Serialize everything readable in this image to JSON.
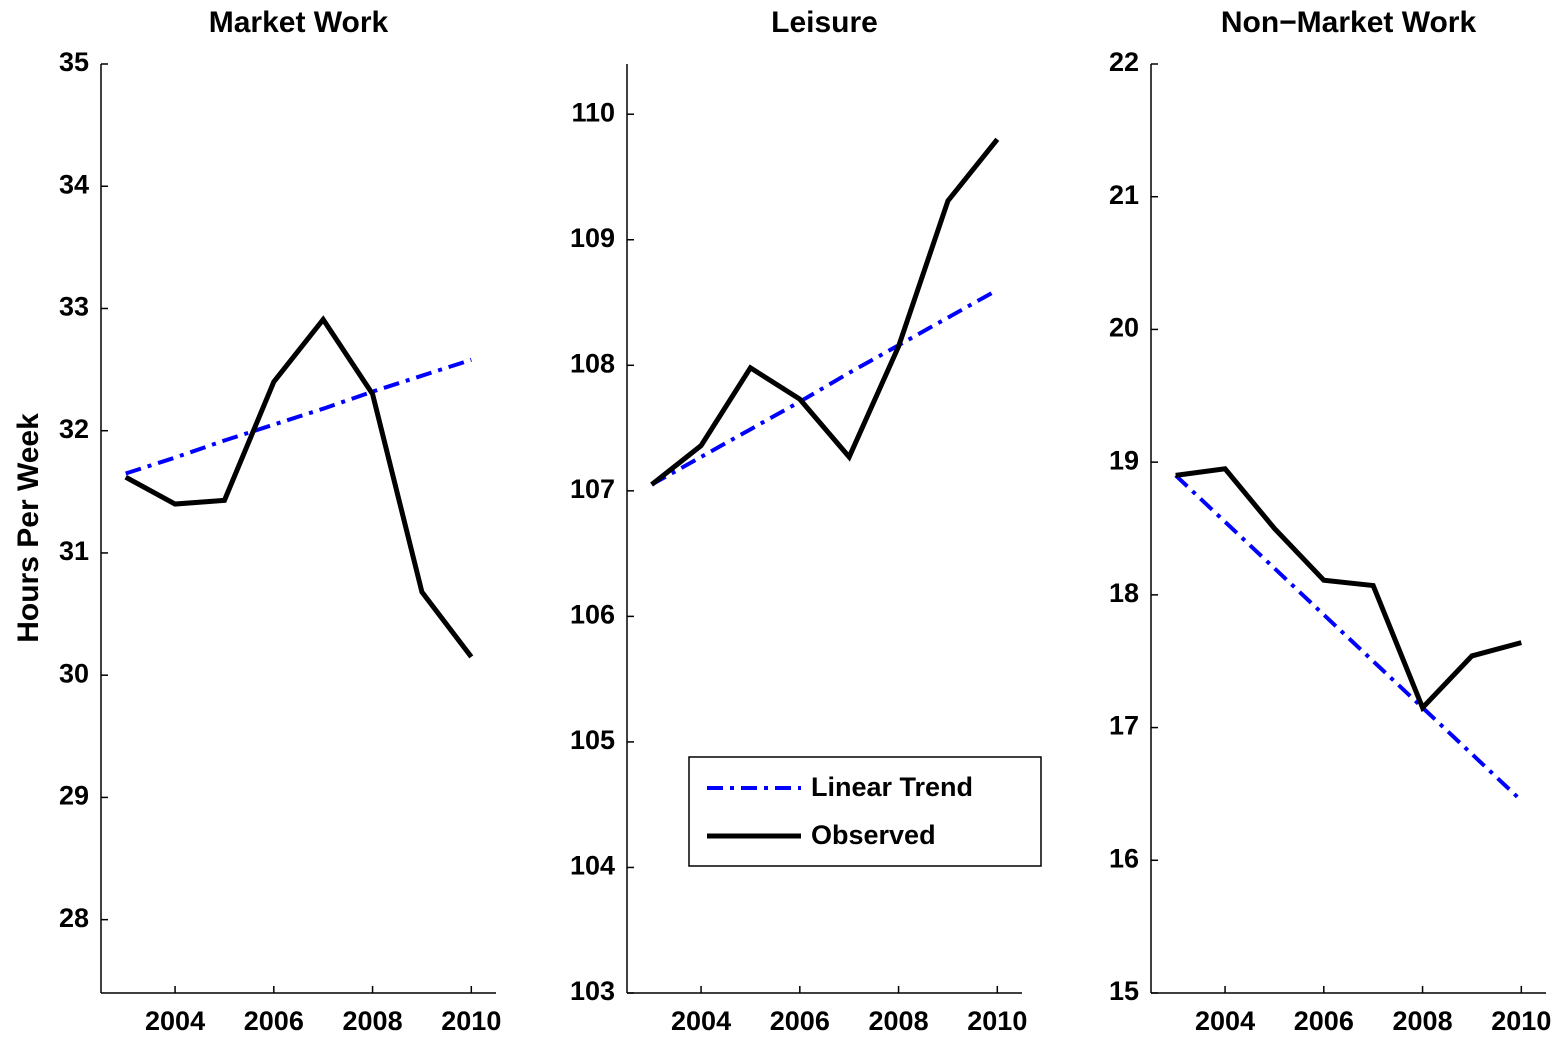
{
  "chart_data": [
    {
      "type": "line",
      "title": "Market Work",
      "ylabel": "Hours Per Week",
      "x": [
        2003,
        2004,
        2005,
        2006,
        2007,
        2008,
        2009,
        2010
      ],
      "series": [
        {
          "color": "#0000ff",
          "style": "dashdot",
          "values": [
            31.65,
            31.78,
            31.92,
            32.05,
            32.18,
            32.32,
            32.45,
            32.58
          ]
        },
        {
          "color": "#000000",
          "style": "solid",
          "values": [
            31.62,
            31.4,
            31.43,
            32.4,
            32.91,
            32.3,
            30.68,
            30.15
          ]
        }
      ],
      "xlim": [
        2002.5,
        2010.5
      ],
      "xticks": [
        2004,
        2006,
        2008,
        2010
      ],
      "ylim": [
        27.4,
        35
      ],
      "yticks": [
        28,
        29,
        30,
        31,
        32,
        33,
        34,
        35
      ],
      "grid": false
    },
    {
      "type": "line",
      "title": "Leisure",
      "x": [
        2003,
        2004,
        2005,
        2006,
        2007,
        2008,
        2009,
        2010
      ],
      "series": [
        {
          "name": "Linear Trend",
          "color": "#0000ff",
          "style": "dashdot",
          "values": [
            107.05,
            107.27,
            107.49,
            107.71,
            107.94,
            108.16,
            108.38,
            108.6
          ]
        },
        {
          "name": "Observed",
          "color": "#000000",
          "style": "solid",
          "values": [
            107.05,
            107.36,
            107.98,
            107.73,
            107.27,
            108.15,
            109.31,
            109.8
          ]
        }
      ],
      "xlim": [
        2002.5,
        2010.5
      ],
      "xticks": [
        2004,
        2006,
        2008,
        2010
      ],
      "ylim": [
        103,
        110.4
      ],
      "yticks": [
        103,
        104,
        105,
        106,
        107,
        108,
        109,
        110
      ],
      "grid": false,
      "legend": "lower right"
    },
    {
      "type": "line",
      "title": "Non−Market Work",
      "x": [
        2003,
        2004,
        2005,
        2006,
        2007,
        2008,
        2009,
        2010
      ],
      "series": [
        {
          "color": "#0000ff",
          "style": "dashdot",
          "values": [
            18.9,
            18.55,
            18.2,
            17.85,
            17.5,
            17.15,
            16.8,
            16.45
          ]
        },
        {
          "color": "#000000",
          "style": "solid",
          "values": [
            18.9,
            18.95,
            18.5,
            18.11,
            18.07,
            17.15,
            17.54,
            17.64
          ]
        }
      ],
      "xlim": [
        2002.5,
        2010.5
      ],
      "xticks": [
        2004,
        2006,
        2008,
        2010
      ],
      "ylim": [
        15,
        22
      ],
      "yticks": [
        15,
        16,
        17,
        18,
        19,
        20,
        21,
        22
      ],
      "grid": false
    }
  ]
}
